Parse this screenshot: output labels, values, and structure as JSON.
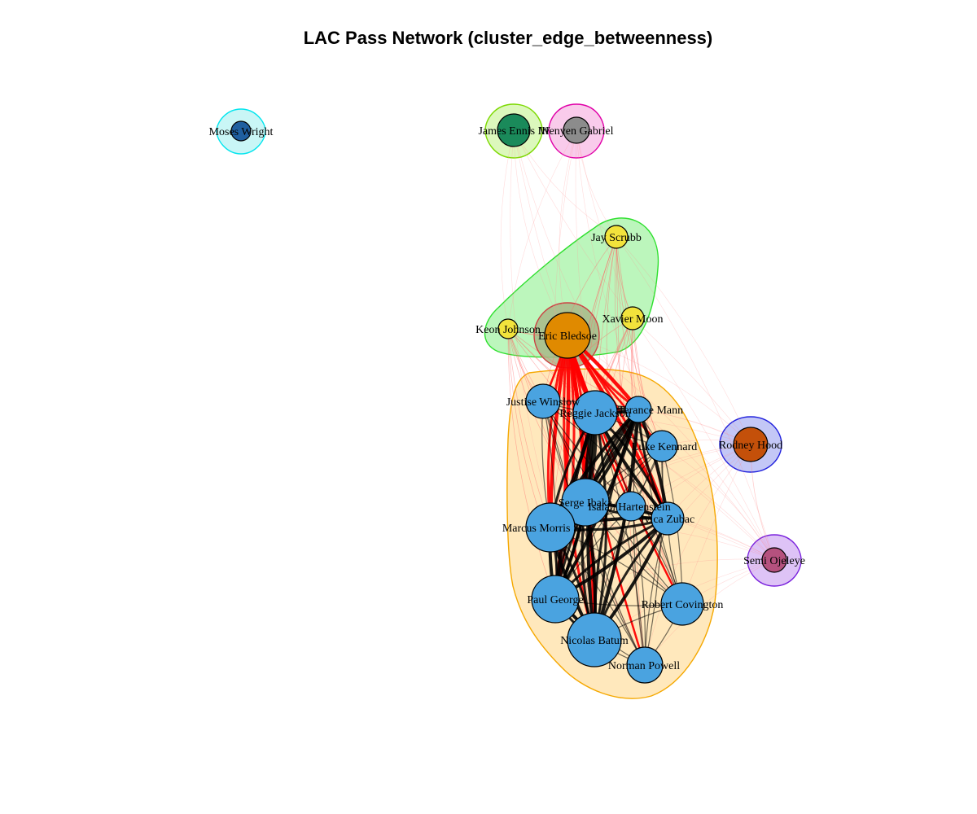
{
  "title": "LAC Pass Network (cluster_edge_betweenness)",
  "colors": {
    "blue": "#4aa3e0",
    "orange": "#e08a00",
    "yellow": "#f2e33c",
    "dark_blue": "#1f5fa0",
    "teal": "#1a8a5a",
    "grey": "#8c8c8c",
    "rust": "#c4500a",
    "mauve": "#b5517e",
    "red_edge": "#ff0000",
    "black_edge": "#000000"
  },
  "clusters": [
    {
      "id": "moses",
      "fill": "#bff5f5",
      "stroke": "#00e5ee",
      "members": [
        "Moses Wright"
      ]
    },
    {
      "id": "ennis",
      "fill": "#d6f7b0",
      "stroke": "#7cd900",
      "members": [
        "James Ennis III"
      ]
    },
    {
      "id": "gabriel",
      "fill": "#f8c2e8",
      "stroke": "#e000a8",
      "members": [
        "Wenyen Gabriel"
      ]
    },
    {
      "id": "bench",
      "fill": "#b0f5b0",
      "stroke": "#2ee02e",
      "members": [
        "Jay Scrubb",
        "Xavier Moon",
        "Keon Johnson"
      ]
    },
    {
      "id": "bledsoe",
      "fill": "#a8b888",
      "stroke": "#cc4444",
      "members": [
        "Eric Bledsoe"
      ]
    },
    {
      "id": "core",
      "fill": "#ffe4b0",
      "stroke": "#f5a800",
      "members": [
        "Justise Winslow",
        "Reggie Jackson",
        "Terance Mann",
        "Luke Kennard",
        "Serge Ibaka",
        "Isaiah Hartenstein",
        "Ivica Zubac",
        "Marcus Morris Sr.",
        "Paul George",
        "Robert Covington",
        "Nicolas Batum",
        "Norman Powell"
      ]
    },
    {
      "id": "hood",
      "fill": "#b8bdf5",
      "stroke": "#2222dd",
      "members": [
        "Rodney Hood"
      ]
    },
    {
      "id": "semi",
      "fill": "#d8b8f5",
      "stroke": "#7a22dd",
      "members": [
        "Semi Ojeleye"
      ]
    }
  ],
  "nodes": [
    {
      "name": "Moses Wright",
      "color": "#1f5fa0"
    },
    {
      "name": "James Ennis III",
      "color": "#1a8a5a"
    },
    {
      "name": "Wenyen Gabriel",
      "color": "#8c8c8c"
    },
    {
      "name": "Jay Scrubb",
      "color": "#f2e33c"
    },
    {
      "name": "Xavier Moon",
      "color": "#f2e33c"
    },
    {
      "name": "Keon Johnson",
      "color": "#f2e33c"
    },
    {
      "name": "Eric Bledsoe",
      "color": "#e08a00"
    },
    {
      "name": "Justise Winslow",
      "color": "#4aa3e0"
    },
    {
      "name": "Reggie Jackson",
      "color": "#4aa3e0"
    },
    {
      "name": "Terance Mann",
      "color": "#4aa3e0"
    },
    {
      "name": "Luke Kennard",
      "color": "#4aa3e0"
    },
    {
      "name": "Rodney Hood",
      "color": "#c4500a"
    },
    {
      "name": "Serge Ibaka",
      "color": "#4aa3e0"
    },
    {
      "name": "Isaiah Hartenstein",
      "color": "#4aa3e0"
    },
    {
      "name": "Ivica Zubac",
      "color": "#4aa3e0"
    },
    {
      "name": "Marcus Morris Sr.",
      "color": "#4aa3e0"
    },
    {
      "name": "Semi Ojeleye",
      "color": "#b5517e"
    },
    {
      "name": "Paul George",
      "color": "#4aa3e0"
    },
    {
      "name": "Robert Covington",
      "color": "#4aa3e0"
    },
    {
      "name": "Nicolas Batum",
      "color": "#4aa3e0"
    },
    {
      "name": "Norman Powell",
      "color": "#4aa3e0"
    }
  ]
}
